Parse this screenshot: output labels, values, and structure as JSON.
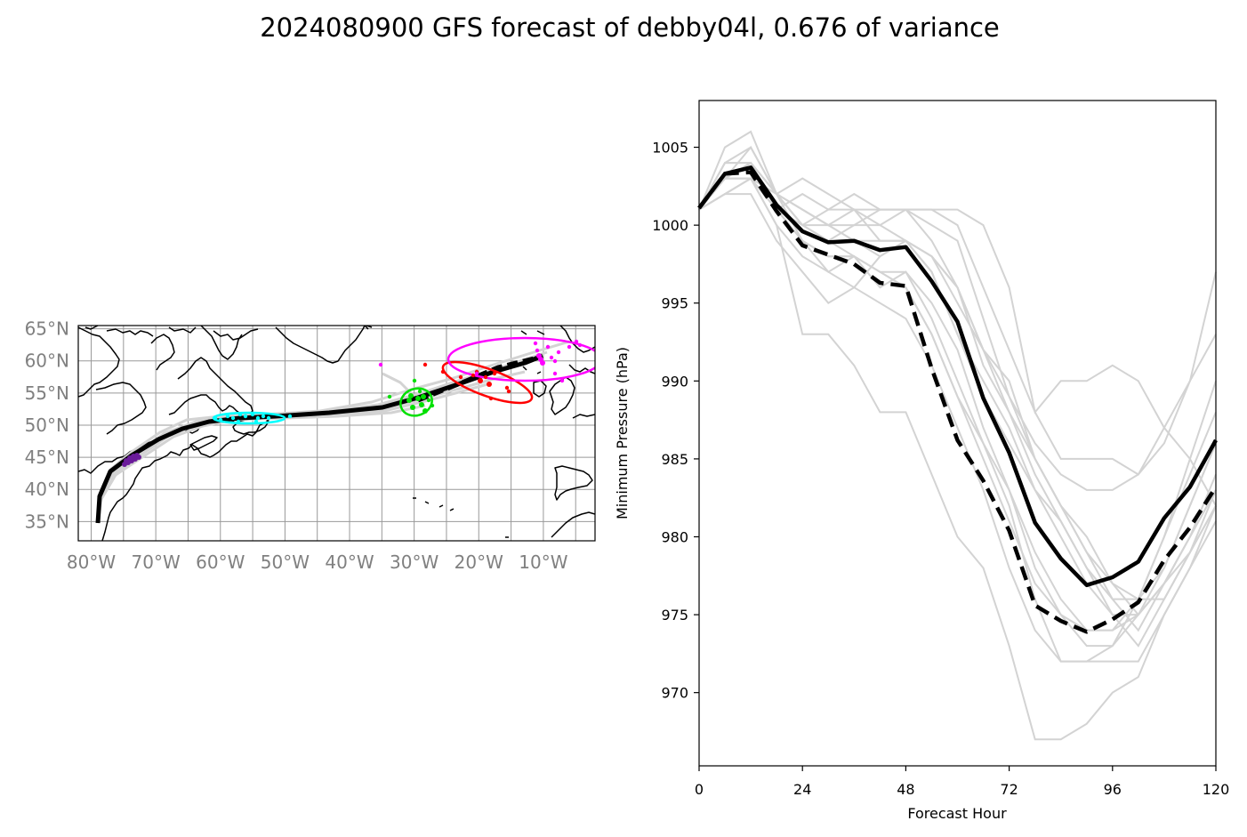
{
  "title": "2024080900 GFS forecast of debby04l, 0.676 of variance",
  "map": {
    "lat_labels": [
      "35°N",
      "40°N",
      "45°N",
      "50°N",
      "55°N",
      "60°N",
      "65°N"
    ],
    "lon_labels": [
      "80°W",
      "70°W",
      "60°W",
      "50°W",
      "40°W",
      "30°W",
      "20°W",
      "10°W"
    ],
    "lat_range": [
      32,
      65.5
    ],
    "lon_range": [
      -82,
      -2
    ],
    "grid": true,
    "colors": {
      "track_mean": "#000000",
      "track_members": "#d3d3d3",
      "cluster_purple": "#6a1b9a",
      "cluster_cyan": "#00ffff",
      "cluster_green": "#00e000",
      "cluster_red": "#ff0000",
      "cluster_magenta": "#ff00ff"
    }
  },
  "chart_data": {
    "type": "line",
    "xlabel": "Forecast Hour",
    "ylabel": "Minimum Pressure (hPa)",
    "xlim": [
      0,
      120
    ],
    "ylim": [
      965.3,
      1008
    ],
    "xticks": [
      0,
      24,
      48,
      72,
      96,
      120
    ],
    "yticks": [
      970,
      975,
      980,
      985,
      990,
      995,
      1000,
      1005
    ],
    "x": [
      0,
      6,
      12,
      18,
      24,
      30,
      36,
      42,
      48,
      54,
      60,
      66,
      72,
      78,
      84,
      90,
      96,
      102,
      108,
      114,
      120
    ],
    "series": [
      {
        "style": "solid-black",
        "values": [
          1001.1,
          1003.3,
          1003.7,
          1001.3,
          999.6,
          998.9,
          999.0,
          998.4,
          998.6,
          996.4,
          993.8,
          988.9,
          985.4,
          980.9,
          978.6,
          976.9,
          977.4,
          978.4,
          981.2,
          983.2,
          986.2
        ]
      },
      {
        "style": "dashed-black",
        "values": [
          1001.1,
          1003.3,
          1003.4,
          1000.9,
          998.7,
          998.1,
          997.5,
          996.3,
          996.1,
          990.8,
          986.2,
          983.6,
          980.4,
          975.6,
          974.6,
          973.9,
          974.7,
          975.8,
          978.5,
          980.6,
          983.2
        ]
      },
      {
        "style": "member",
        "values": [
          1001,
          1005,
          1006,
          1002,
          1000,
          999,
          1000,
          1001,
          1001,
          999,
          996,
          991,
          988,
          985,
          982,
          979,
          976,
          976,
          978,
          982,
          986
        ]
      },
      {
        "style": "member",
        "values": [
          1001,
          1004,
          1005,
          1002,
          1003,
          1002,
          1001,
          1000,
          999,
          997,
          993,
          989,
          986,
          983,
          980,
          977,
          975,
          975,
          977,
          980,
          984
        ]
      },
      {
        "style": "member",
        "values": [
          1001,
          1003,
          1004,
          1002,
          1001,
          1000,
          1000,
          1000,
          1001,
          1001,
          1000,
          996,
          992,
          988,
          985,
          985,
          985,
          984,
          986,
          990,
          997
        ]
      },
      {
        "style": "member",
        "values": [
          1001,
          1003,
          1003,
          1001,
          999,
          998,
          998,
          997,
          997,
          995,
          992,
          987,
          983,
          979,
          976,
          974,
          974,
          976,
          980,
          985,
          990
        ]
      },
      {
        "style": "member",
        "values": [
          1001,
          1002,
          1003,
          1001,
          1000,
          999,
          998,
          997,
          996,
          993,
          989,
          985,
          981,
          977,
          975,
          973,
          973,
          976,
          980,
          984,
          988
        ]
      },
      {
        "style": "member",
        "values": [
          1001,
          1003,
          1003,
          1000,
          998,
          997,
          996,
          995,
          994,
          991,
          987,
          983,
          978,
          974,
          972,
          972,
          973,
          975,
          978,
          982,
          986
        ]
      },
      {
        "style": "member",
        "values": [
          1001,
          1002,
          1002,
          999,
          997,
          995,
          996,
          998,
          999,
          998,
          996,
          992,
          989,
          986,
          984,
          983,
          983,
          984,
          987,
          990,
          993
        ]
      },
      {
        "style": "member",
        "values": [
          1001,
          1002,
          1003,
          1000,
          993,
          993,
          991,
          988,
          988,
          984,
          980,
          978,
          973,
          967,
          967,
          968,
          970,
          971,
          975,
          978,
          982
        ]
      },
      {
        "style": "member",
        "values": [
          1001,
          1003,
          1004,
          1002,
          1000,
          1000,
          999,
          999,
          999,
          997,
          993,
          990,
          987,
          983,
          981,
          978,
          976,
          974,
          977,
          979,
          983
        ]
      },
      {
        "style": "member",
        "values": [
          1001,
          1003,
          1004,
          1001,
          999,
          998,
          998,
          997,
          996,
          993,
          989,
          986,
          982,
          976,
          972,
          972,
          972,
          972,
          975,
          978,
          981
        ]
      },
      {
        "style": "member",
        "values": [
          1001,
          1003,
          1003,
          1001,
          1002,
          1001,
          1002,
          1001,
          1001,
          1000,
          999,
          994,
          989,
          985,
          982,
          980,
          977,
          975,
          977,
          980,
          983
        ]
      },
      {
        "style": "member",
        "values": [
          1001,
          1004,
          1004,
          1002,
          1001,
          1000,
          1001,
          999,
          999,
          998,
          995,
          992,
          988,
          984,
          981,
          978,
          975,
          973,
          976,
          979,
          982
        ]
      },
      {
        "style": "member",
        "values": [
          1001,
          1003,
          1003,
          1002,
          999,
          997,
          998,
          996,
          997,
          994,
          990,
          986,
          983,
          978,
          975,
          974,
          974,
          975,
          977,
          980,
          983
        ]
      },
      {
        "style": "member",
        "values": [
          1001,
          1004,
          1004,
          1002,
          1000,
          1001,
          1001,
          1001,
          1001,
          1001,
          1001,
          1000,
          996,
          988,
          990,
          990,
          991,
          990,
          987,
          985,
          982
        ]
      },
      {
        "style": "member",
        "values": [
          1001,
          1003,
          1005,
          1002,
          1001,
          1000,
          999,
          998,
          999,
          998,
          996,
          992,
          990,
          985,
          982,
          979,
          977,
          976,
          976,
          979,
          982
        ]
      }
    ]
  }
}
